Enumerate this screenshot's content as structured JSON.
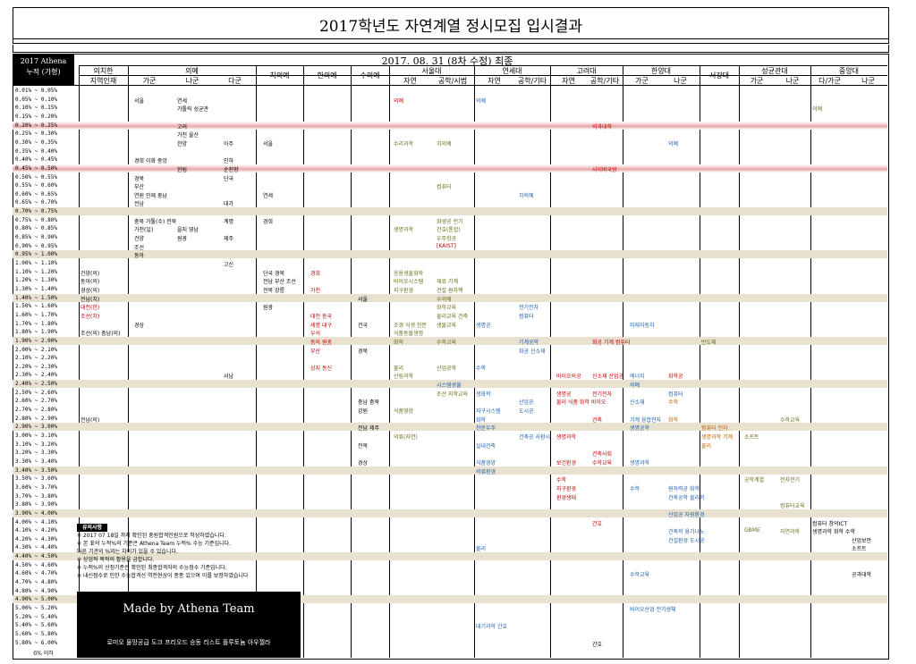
{
  "title": "2017학년도 자연계열 정시모집 입시결과",
  "subtitle_date": "2017. 08. 31 (8차 수정) 최종",
  "athena": {
    "line1": "2017 Athena",
    "line2": "누적 (가형)"
  },
  "groups": [
    {
      "label": "의치한",
      "sub": [
        "지역인재"
      ]
    },
    {
      "label": "의예",
      "sub": [
        "가군",
        "나군",
        "다군"
      ]
    },
    {
      "label": "치의예",
      "sub": []
    },
    {
      "label": "한의예",
      "sub": []
    },
    {
      "label": "수의예",
      "sub": []
    },
    {
      "label": "서울대",
      "sub": [
        "자연",
        "공학/시범"
      ]
    },
    {
      "label": "연세대",
      "sub": [
        "자연",
        "공학/기타"
      ]
    },
    {
      "label": "고려대",
      "sub": [
        "자연",
        "공학/기타"
      ]
    },
    {
      "label": "한양대",
      "sub": [
        "가군",
        "나군"
      ]
    },
    {
      "label": "서강대",
      "sub": []
    },
    {
      "label": "성균관대",
      "sub": [
        "가군",
        "나군"
      ]
    },
    {
      "label": "중앙대",
      "sub": [
        "다/가군",
        "나군"
      ]
    }
  ],
  "rows": [
    {
      "r": "0.01% ~ 0.05%",
      "t": ""
    },
    {
      "r": "0.05% ~ 0.10%",
      "t": ""
    },
    {
      "r": "0.10% ~ 0.15%",
      "t": ""
    },
    {
      "r": "0.15% ~ 0.20%",
      "t": ""
    },
    {
      "r": "0.20% ~ 0.25%",
      "t": "pink"
    },
    {
      "r": "0.25% ~ 0.30%",
      "t": ""
    },
    {
      "r": "0.30% ~ 0.35%",
      "t": ""
    },
    {
      "r": "0.35% ~ 0.40%",
      "t": ""
    },
    {
      "r": "0.40% ~ 0.45%",
      "t": ""
    },
    {
      "r": "0.45% ~ 0.50%",
      "t": "pink"
    },
    {
      "r": "0.50% ~ 0.55%",
      "t": ""
    },
    {
      "r": "0.55% ~ 0.60%",
      "t": ""
    },
    {
      "r": "0.60% ~ 0.65%",
      "t": ""
    },
    {
      "r": "0.65% ~ 0.70%",
      "t": ""
    },
    {
      "r": "0.70% ~ 0.75%",
      "t": "tan"
    },
    {
      "r": "0.75% ~ 0.80%",
      "t": ""
    },
    {
      "r": "0.80% ~ 0.85%",
      "t": ""
    },
    {
      "r": "0.85% ~ 0.90%",
      "t": ""
    },
    {
      "r": "0.90% ~ 0.95%",
      "t": ""
    },
    {
      "r": "0.95% ~ 1.00%",
      "t": "tan"
    },
    {
      "r": "1.00% ~ 1.10%",
      "t": ""
    },
    {
      "r": "1.10% ~ 1.20%",
      "t": ""
    },
    {
      "r": "1.20% ~ 1.30%",
      "t": ""
    },
    {
      "r": "1.30% ~ 1.40%",
      "t": ""
    },
    {
      "r": "1.40% ~ 1.50%",
      "t": "tan"
    },
    {
      "r": "1.50% ~ 1.60%",
      "t": ""
    },
    {
      "r": "1.60% ~ 1.70%",
      "t": ""
    },
    {
      "r": "1.70% ~ 1.80%",
      "t": ""
    },
    {
      "r": "1.80% ~ 1.90%",
      "t": ""
    },
    {
      "r": "1.90% ~ 2.00%",
      "t": "tan"
    },
    {
      "r": "2.00% ~ 2.10%",
      "t": ""
    },
    {
      "r": "2.10% ~ 2.20%",
      "t": ""
    },
    {
      "r": "2.20% ~ 2.30%",
      "t": ""
    },
    {
      "r": "2.30% ~ 2.40%",
      "t": ""
    },
    {
      "r": "2.40% ~ 2.50%",
      "t": "tan"
    },
    {
      "r": "2.50% ~ 2.60%",
      "t": ""
    },
    {
      "r": "2.60% ~ 2.70%",
      "t": ""
    },
    {
      "r": "2.70% ~ 2.80%",
      "t": ""
    },
    {
      "r": "2.80% ~ 2.90%",
      "t": ""
    },
    {
      "r": "2.90% ~ 3.00%",
      "t": "tan"
    },
    {
      "r": "3.00% ~ 3.10%",
      "t": ""
    },
    {
      "r": "3.10% ~ 3.20%",
      "t": ""
    },
    {
      "r": "3.20% ~ 3.30%",
      "t": ""
    },
    {
      "r": "3.30% ~ 3.40%",
      "t": ""
    },
    {
      "r": "3.40% ~ 3.50%",
      "t": "tan"
    },
    {
      "r": "3.50% ~ 3.60%",
      "t": ""
    },
    {
      "r": "3.60% ~ 3.70%",
      "t": ""
    },
    {
      "r": "3.70% ~ 3.80%",
      "t": ""
    },
    {
      "r": "3.80% ~ 3.90%",
      "t": ""
    },
    {
      "r": "3.90% ~ 4.00%",
      "t": "tan"
    },
    {
      "r": "4.00% ~ 4.10%",
      "t": ""
    },
    {
      "r": "4.10% ~ 4.20%",
      "t": ""
    },
    {
      "r": "4.20% ~ 4.30%",
      "t": ""
    },
    {
      "r": "4.30% ~ 4.40%",
      "t": ""
    },
    {
      "r": "4.40% ~ 4.50%",
      "t": "tan"
    },
    {
      "r": "4.50% ~ 4.60%",
      "t": ""
    },
    {
      "r": "4.60% ~ 4.70%",
      "t": ""
    },
    {
      "r": "4.70% ~ 4.80%",
      "t": ""
    },
    {
      "r": "4.80% ~ 4.90%",
      "t": ""
    },
    {
      "r": "4.90% ~ 5.00%",
      "t": "tan"
    },
    {
      "r": "5.00% ~ 5.20%",
      "t": ""
    },
    {
      "r": "5.20% ~ 5.40%",
      "t": ""
    },
    {
      "r": "5.40% ~ 5.60%",
      "t": ""
    },
    {
      "r": "5.60% ~ 5.80%",
      "t": ""
    },
    {
      "r": "5.80% ~ 6.00%",
      "t": ""
    }
  ],
  "entries": [
    {
      "row": 1,
      "col": "m_ga",
      "text": "서울",
      "c": "k"
    },
    {
      "row": 1,
      "col": "m_na",
      "text": "연세",
      "c": "k"
    },
    {
      "row": 1,
      "col": "snu_e",
      "text": "의예",
      "c": "r"
    },
    {
      "row": 1,
      "col": "ys_e",
      "text": "의예",
      "c": "b"
    },
    {
      "row": 2,
      "col": "m_na",
      "text": "가톨릭 성균관",
      "c": "k"
    },
    {
      "row": 2,
      "col": "cau_ga",
      "text": "의예",
      "c": "g"
    },
    {
      "row": 4,
      "col": "m_na",
      "text": "고려",
      "c": "k"
    },
    {
      "row": 4,
      "col": "ku_g",
      "text": "의과대학",
      "c": "r"
    },
    {
      "row": 5,
      "col": "m_na",
      "text": "가천 울산",
      "c": "k"
    },
    {
      "row": 6,
      "col": "m_na",
      "text": "한양",
      "c": "k"
    },
    {
      "row": 6,
      "col": "m_da",
      "text": "아주",
      "c": "k"
    },
    {
      "row": 6,
      "col": "dent",
      "text": "서울",
      "c": "k"
    },
    {
      "row": 6,
      "col": "snu_e",
      "text": "수리과학",
      "c": "g"
    },
    {
      "row": 6,
      "col": "snu_g",
      "text": "치의예",
      "c": "g"
    },
    {
      "row": 6,
      "col": "hy_na",
      "text": "의예",
      "c": "b"
    },
    {
      "row": 8,
      "col": "m_ga",
      "text": "경희 이화 중앙",
      "c": "k"
    },
    {
      "row": 8,
      "col": "m_da",
      "text": "인하",
      "c": "k"
    },
    {
      "row": 9,
      "col": "m_na",
      "text": "한림",
      "c": "k"
    },
    {
      "row": 9,
      "col": "m_da",
      "text": "순천향",
      "c": "k"
    },
    {
      "row": 9,
      "col": "ku_g",
      "text": "사이버국방",
      "c": "r"
    },
    {
      "row": 10,
      "col": "m_ga",
      "text": "경북",
      "c": "k"
    },
    {
      "row": 10,
      "col": "m_da",
      "text": "단국",
      "c": "k"
    },
    {
      "row": 11,
      "col": "m_ga",
      "text": "부산",
      "c": "k"
    },
    {
      "row": 11,
      "col": "snu_g",
      "text": "컴퓨터",
      "c": "g"
    },
    {
      "row": 12,
      "col": "m_ga",
      "text": "연원 인제 충남",
      "c": "k"
    },
    {
      "row": 12,
      "col": "dent",
      "text": "연세",
      "c": "k"
    },
    {
      "row": 12,
      "col": "ys_g",
      "text": "치의예",
      "c": "b"
    },
    {
      "row": 13,
      "col": "m_ga",
      "text": "전남",
      "c": "k"
    },
    {
      "row": 13,
      "col": "m_da",
      "text": "대가",
      "c": "k"
    },
    {
      "row": 15,
      "col": "m_ga",
      "text": "충북 가톨(수) 전북",
      "c": "k"
    },
    {
      "row": 15,
      "col": "m_da",
      "text": "계명",
      "c": "k"
    },
    {
      "row": 15,
      "col": "dent",
      "text": "경희",
      "c": "k"
    },
    {
      "row": 15,
      "col": "snu_g",
      "text": "화생공 전기",
      "c": "g"
    },
    {
      "row": 16,
      "col": "m_ga",
      "text": "가천(일)",
      "c": "k"
    },
    {
      "row": 16,
      "col": "m_na",
      "text": "을지 영남",
      "c": "k"
    },
    {
      "row": 16,
      "col": "snu_e",
      "text": "생명과학",
      "c": "g"
    },
    {
      "row": 16,
      "col": "snu_g",
      "text": "간호(통합)",
      "c": "g"
    },
    {
      "row": 17,
      "col": "m_ga",
      "text": "건양",
      "c": "k"
    },
    {
      "row": 17,
      "col": "m_na",
      "text": "원광",
      "c": "k"
    },
    {
      "row": 17,
      "col": "m_da",
      "text": "제주",
      "c": "k"
    },
    {
      "row": 17,
      "col": "snu_g",
      "text": "우주항공",
      "c": "g"
    },
    {
      "row": 18,
      "col": "m_ga",
      "text": "조선",
      "c": "k"
    },
    {
      "row": 18,
      "col": "snu_g",
      "text": "[KAIST]",
      "c": "r"
    },
    {
      "row": 19,
      "col": "m_ga",
      "text": "동아",
      "c": "k"
    },
    {
      "row": 20,
      "col": "m_da",
      "text": "고신",
      "c": "k"
    },
    {
      "row": 21,
      "col": "reg",
      "text": "건양(의)",
      "c": "k"
    },
    {
      "row": 21,
      "col": "dent",
      "text": "단국 경북",
      "c": "k"
    },
    {
      "row": 21,
      "col": "orm",
      "text": "경희",
      "c": "r"
    },
    {
      "row": 21,
      "col": "snu_e",
      "text": "응용생물화학",
      "c": "g"
    },
    {
      "row": 22,
      "col": "reg",
      "text": "동아(의)",
      "c": "k"
    },
    {
      "row": 22,
      "col": "dent",
      "text": "전남 부산 조선",
      "c": "k"
    },
    {
      "row": 22,
      "col": "snu_e",
      "text": "바이오시스템",
      "c": "g"
    },
    {
      "row": 22,
      "col": "snu_g",
      "text": "재료 기계",
      "c": "g"
    },
    {
      "row": 23,
      "col": "reg",
      "text": "경상(의)",
      "c": "k"
    },
    {
      "row": 23,
      "col": "dent",
      "text": "전북 강릉",
      "c": "k"
    },
    {
      "row": 23,
      "col": "orm",
      "text": "가천",
      "c": "r"
    },
    {
      "row": 23,
      "col": "snu_e",
      "text": "지구환경",
      "c": "g"
    },
    {
      "row": 23,
      "col": "snu_g",
      "text": "건설 원자핵",
      "c": "g"
    },
    {
      "row": 24,
      "col": "reg",
      "text": "전남(치)",
      "c": "k"
    },
    {
      "row": 24,
      "col": "vet",
      "text": "서울",
      "c": "k"
    },
    {
      "row": 24,
      "col": "snu_g",
      "text": "수의예",
      "c": "g"
    },
    {
      "row": 25,
      "col": "reg",
      "text": "대전(한)",
      "c": "r"
    },
    {
      "row": 25,
      "col": "dent",
      "text": "원광",
      "c": "k"
    },
    {
      "row": 25,
      "col": "snu_g",
      "text": "화학교육",
      "c": "g"
    },
    {
      "row": 25,
      "col": "ys_g",
      "text": "전기전자",
      "c": "b"
    },
    {
      "row": 26,
      "col": "reg",
      "text": "조선(치)",
      "c": "r"
    },
    {
      "row": 26,
      "col": "orm",
      "text": "대전 동국",
      "c": "r"
    },
    {
      "row": 26,
      "col": "snu_g",
      "text": "물리교육 건축",
      "c": "g"
    },
    {
      "row": 26,
      "col": "ys_g",
      "text": "컴퓨터",
      "c": "b"
    },
    {
      "row": 27,
      "col": "m_ga",
      "text": "경상",
      "c": "k"
    },
    {
      "row": 27,
      "col": "orm",
      "text": "세명 대구",
      "c": "r"
    },
    {
      "row": 27,
      "col": "vet",
      "text": "건국",
      "c": "k"
    },
    {
      "row": 27,
      "col": "snu_e",
      "text": "조경 식생 천문",
      "c": "g"
    },
    {
      "row": 27,
      "col": "snu_g",
      "text": "생물교육",
      "c": "g"
    },
    {
      "row": 27,
      "col": "ys_e",
      "text": "생명공",
      "c": "b"
    },
    {
      "row": 27,
      "col": "hy_ga",
      "text": "미래자동차",
      "c": "b"
    },
    {
      "row": 28,
      "col": "reg",
      "text": "조선(의) 충남(의)",
      "c": "k"
    },
    {
      "row": 28,
      "col": "orm",
      "text": "우석",
      "c": "r"
    },
    {
      "row": 28,
      "col": "snu_e",
      "text": "식품동물생명",
      "c": "g"
    },
    {
      "row": 29,
      "col": "orm",
      "text": "동의 원광",
      "c": "r"
    },
    {
      "row": 29,
      "col": "snu_e",
      "text": "화학",
      "c": "g"
    },
    {
      "row": 29,
      "col": "snu_g",
      "text": "수학교육",
      "c": "g"
    },
    {
      "row": 29,
      "col": "ys_g",
      "text": "기계공학",
      "c": "b"
    },
    {
      "row": 29,
      "col": "ku_g",
      "text": "화공 기계 컴퓨터",
      "c": "r"
    },
    {
      "row": 29,
      "col": "sg",
      "text": "반도체",
      "c": "g"
    },
    {
      "row": 30,
      "col": "orm",
      "text": "부산",
      "c": "r"
    },
    {
      "row": 30,
      "col": "vet",
      "text": "경북",
      "c": "k"
    },
    {
      "row": 30,
      "col": "ys_g",
      "text": "화공 신소재",
      "c": "b"
    },
    {
      "row": 32,
      "col": "orm",
      "text": "상지 동신",
      "c": "r"
    },
    {
      "row": 32,
      "col": "snu_e",
      "text": "물리",
      "c": "g"
    },
    {
      "row": 32,
      "col": "snu_g",
      "text": "산업공학",
      "c": "g"
    },
    {
      "row": 32,
      "col": "ys_e",
      "text": "수학",
      "c": "b"
    },
    {
      "row": 33,
      "col": "m_da",
      "text": "서남",
      "c": "k"
    },
    {
      "row": 33,
      "col": "snu_e",
      "text": "산림과학",
      "c": "g"
    },
    {
      "row": 33,
      "col": "ku_e",
      "text": "바이오의공",
      "c": "r"
    },
    {
      "row": 33,
      "col": "ku_g",
      "text": "신소재 산업공",
      "c": "r"
    },
    {
      "row": 33,
      "col": "hy_ga",
      "text": "에너지",
      "c": "b"
    },
    {
      "row": 33,
      "col": "hy_na",
      "text": "화학공",
      "c": "r"
    },
    {
      "row": 34,
      "col": "snu_g",
      "text": "시스템생물",
      "c": "b"
    },
    {
      "row": 34,
      "col": "hy_ga",
      "text": "의예",
      "c": "b"
    },
    {
      "row": 35,
      "col": "snu_g",
      "text": "조선 지학교육",
      "c": "g"
    },
    {
      "row": 35,
      "col": "ys_e",
      "text": "생화학",
      "c": "b"
    },
    {
      "row": 35,
      "col": "ku_e",
      "text": "생명공",
      "c": "r"
    },
    {
      "row": 35,
      "col": "ku_g",
      "text": "전기전자",
      "c": "r"
    },
    {
      "row": 35,
      "col": "hy_na",
      "text": "컴퓨터",
      "c": "b"
    },
    {
      "row": 36,
      "col": "vet",
      "text": "충남 충북",
      "c": "k"
    },
    {
      "row": 36,
      "col": "ys_g",
      "text": "산업공",
      "c": "b"
    },
    {
      "row": 36,
      "col": "ku_e",
      "text": "물리 식품 화학 바이오",
      "c": "r"
    },
    {
      "row": 36,
      "col": "hy_ga",
      "text": "신소재",
      "c": "b"
    },
    {
      "row": 36,
      "col": "hy_na",
      "text": "수학",
      "c": "o"
    },
    {
      "row": 37,
      "col": "vet",
      "text": "강원",
      "c": "k"
    },
    {
      "row": 37,
      "col": "snu_e",
      "text": "식품영양",
      "c": "g"
    },
    {
      "row": 37,
      "col": "ys_e",
      "text": "지구시스템",
      "c": "b"
    },
    {
      "row": 37,
      "col": "ys_g",
      "text": "도시공",
      "c": "b"
    },
    {
      "row": 38,
      "col": "reg",
      "text": "전남(의)",
      "c": "k"
    },
    {
      "row": 38,
      "col": "ys_e",
      "text": "화학",
      "c": "b"
    },
    {
      "row": 38,
      "col": "ku_g",
      "text": "건축",
      "c": "r"
    },
    {
      "row": 38,
      "col": "hy_ga",
      "text": "기계 융합전자",
      "c": "b"
    },
    {
      "row": 38,
      "col": "hy_na",
      "text": "화학",
      "c": "o"
    },
    {
      "row": 38,
      "col": "skku_na",
      "text": "수학교육",
      "c": "g"
    },
    {
      "row": 39,
      "col": "vet",
      "text": "전남 제주",
      "c": "k"
    },
    {
      "row": 39,
      "col": "ys_e",
      "text": "천문우주",
      "c": "b"
    },
    {
      "row": 39,
      "col": "hy_ga",
      "text": "생명공학",
      "c": "b"
    },
    {
      "row": 39,
      "col": "sg",
      "text": "컴퓨터 전자",
      "c": "o"
    },
    {
      "row": 40,
      "col": "snu_e",
      "text": "의류(자연)",
      "c": "g"
    },
    {
      "row": 40,
      "col": "ys_g",
      "text": "건축공 사환시",
      "c": "b"
    },
    {
      "row": 40,
      "col": "ku_e",
      "text": "생명과학",
      "c": "r"
    },
    {
      "row": 40,
      "col": "sg",
      "text": "생명과학 기계",
      "c": "o"
    },
    {
      "row": 40,
      "col": "skku_ga",
      "text": "소프트",
      "c": "g"
    },
    {
      "row": 41,
      "col": "vet",
      "text": "전북",
      "c": "k"
    },
    {
      "row": 41,
      "col": "ys_e",
      "text": "실내건축",
      "c": "b"
    },
    {
      "row": 41,
      "col": "sg",
      "text": "물리",
      "c": "o"
    },
    {
      "row": 42,
      "col": "ku_g",
      "text": "건축사회",
      "c": "r"
    },
    {
      "row": 43,
      "col": "vet",
      "text": "경상",
      "c": "k"
    },
    {
      "row": 43,
      "col": "ys_e",
      "text": "식품영양",
      "c": "b"
    },
    {
      "row": 43,
      "col": "ku_e",
      "text": "보건환경",
      "c": "r"
    },
    {
      "row": 43,
      "col": "ku_g",
      "text": "수학교육",
      "c": "r"
    },
    {
      "row": 43,
      "col": "hy_ga",
      "text": "생명과학",
      "c": "b"
    },
    {
      "row": 44,
      "col": "ys_e",
      "text": "의류환경",
      "c": "b"
    },
    {
      "row": 45,
      "col": "ku_e",
      "text": "수학",
      "c": "r"
    },
    {
      "row": 45,
      "col": "skku_ga",
      "text": "공학계열",
      "c": "g"
    },
    {
      "row": 45,
      "col": "skku_na",
      "text": "전자전기",
      "c": "g"
    },
    {
      "row": 46,
      "col": "ku_e",
      "text": "지구환경",
      "c": "r"
    },
    {
      "row": 46,
      "col": "hy_ga",
      "text": "수학",
      "c": "b"
    },
    {
      "row": 46,
      "col": "hy_na",
      "text": "원자력공 화학",
      "c": "b"
    },
    {
      "row": 47,
      "col": "ku_e",
      "text": "환경생태",
      "c": "r"
    },
    {
      "row": 47,
      "col": "hy_na",
      "text": "건축공학 물리학",
      "c": "b"
    },
    {
      "row": 48,
      "col": "skku_na",
      "text": "컴퓨터교육",
      "c": "g"
    },
    {
      "row": 49,
      "col": "hy_na",
      "text": "산업공 자원환경",
      "c": "b"
    },
    {
      "row": 50,
      "col": "ku_g",
      "text": "간호",
      "c": "r"
    },
    {
      "row": 50,
      "col": "cau_ga",
      "text": "컴퓨터 창의ICT",
      "c": "k"
    },
    {
      "row": 51,
      "col": "hy_na",
      "text": "건축학 융기나노",
      "c": "b"
    },
    {
      "row": 51,
      "col": "skku_ga",
      "text": "GBME",
      "c": "g"
    },
    {
      "row": 51,
      "col": "skku_na",
      "text": "자연과학",
      "c": "g"
    },
    {
      "row": 51,
      "col": "cau_ga",
      "text": "생명과학 화학 수학",
      "c": "k"
    },
    {
      "row": 52,
      "col": "hy_na",
      "text": "건설환경 도시공",
      "c": "b"
    },
    {
      "row": 52,
      "col": "cau_na",
      "text": "산업보안",
      "c": "k"
    },
    {
      "row": 53,
      "col": "ys_e",
      "text": "물리",
      "c": "b"
    },
    {
      "row": 53,
      "col": "cau_na",
      "text": "소프트",
      "c": "k"
    },
    {
      "row": 56,
      "col": "hy_ga",
      "text": "수학교육",
      "c": "b"
    },
    {
      "row": 56,
      "col": "cau_na",
      "text": "공과대학",
      "c": "k"
    },
    {
      "row": 60,
      "col": "hy_ga",
      "text": "바이오산업 전기생체",
      "c": "b"
    },
    {
      "row": 62,
      "col": "ys_e",
      "text": "대기과학 간호",
      "c": "b"
    },
    {
      "row": 64,
      "col": "ku_g",
      "text": "간호",
      "c": "k"
    }
  ],
  "notes": {
    "title": "유의사항",
    "lines": [
      "※ 2017 07 18일 까지 확인된 충원합격인원으로 작성하였습니다.",
      "※ 본 표의 누적%의 기준은 Athena Team 누적% 수능 기준입니다.",
      "다른 기관의 %와는 차이가 있을 수 있습니다.",
      "※ 상업적 목적의 활용을 금합니다.",
      "※ 누적%의 산정기준은 확인된 최종합격자의 수능점수 기준입니다.",
      "※ 내신점수로 인한 수능합격선 역전현상이 종종 있으며 이를 보정하였습니다"
    ]
  },
  "madeby": "Made by Athena Team",
  "madeby_sub": "로미오 물망공급 도크 프리오드 승동 리스트 플루토늄 아우젤라",
  "footer": "6% 이하",
  "colors": {
    "red": "#c00000",
    "olive": "#6b6b1a",
    "blue": "#1f5fb0",
    "orange": "#c06000",
    "pink": "#e7a7a7",
    "tan": "#e8e1cf"
  }
}
